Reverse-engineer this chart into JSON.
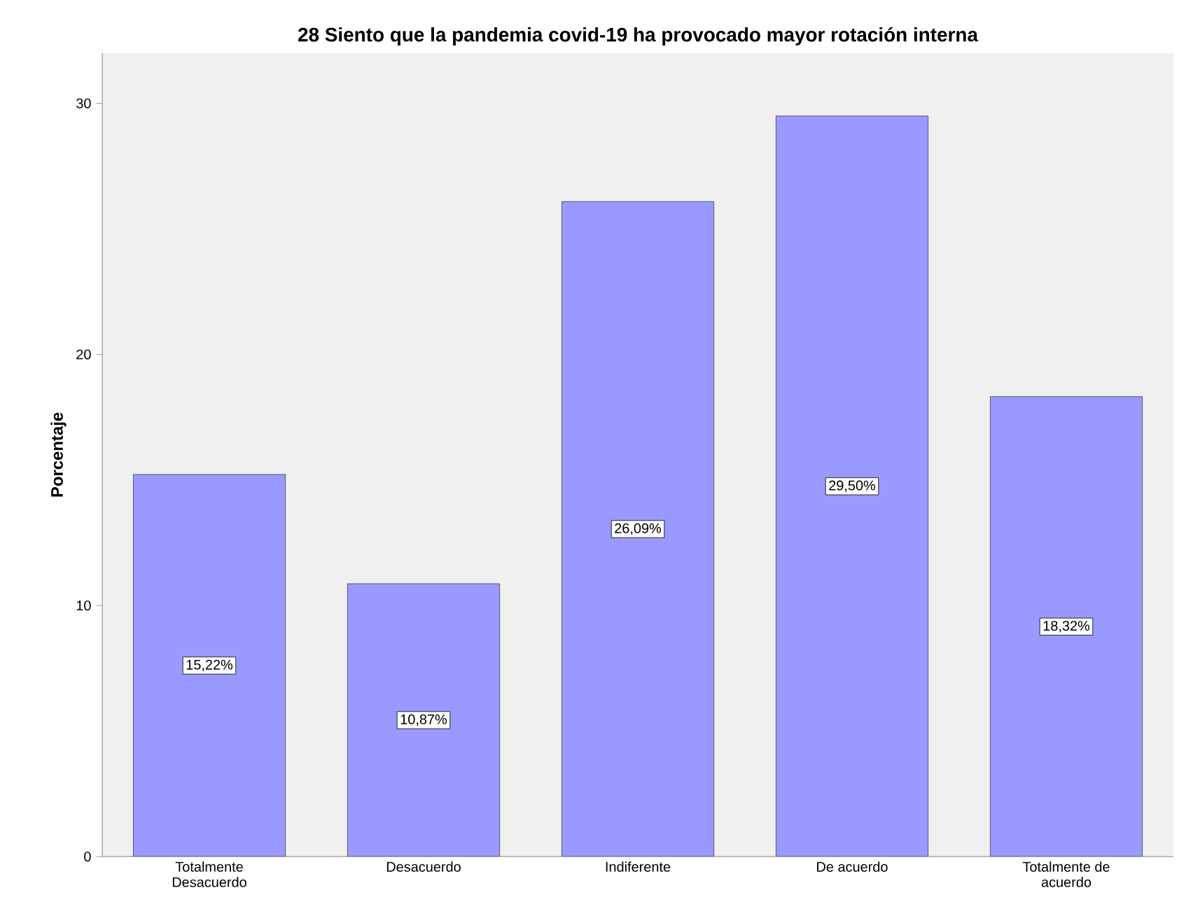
{
  "chart_data": {
    "type": "bar",
    "title": "28 Siento que la pandemia covid-19 ha provocado mayor rotación interna",
    "ylabel": "Porcentaje",
    "categories": [
      "Totalmente Desacuerdo",
      "Desacuerdo",
      "Indiferente",
      "De acuerdo",
      "Totalmente de acuerdo"
    ],
    "values": [
      15.22,
      10.87,
      26.09,
      29.5,
      18.32
    ],
    "value_labels": [
      "15,22%",
      "10,87%",
      "26,09%",
      "29,50%",
      "18,32%"
    ],
    "color": "#9999ff",
    "ylim": [
      0,
      32
    ],
    "yticks": [
      0,
      10,
      20,
      30
    ],
    "grid": false
  }
}
